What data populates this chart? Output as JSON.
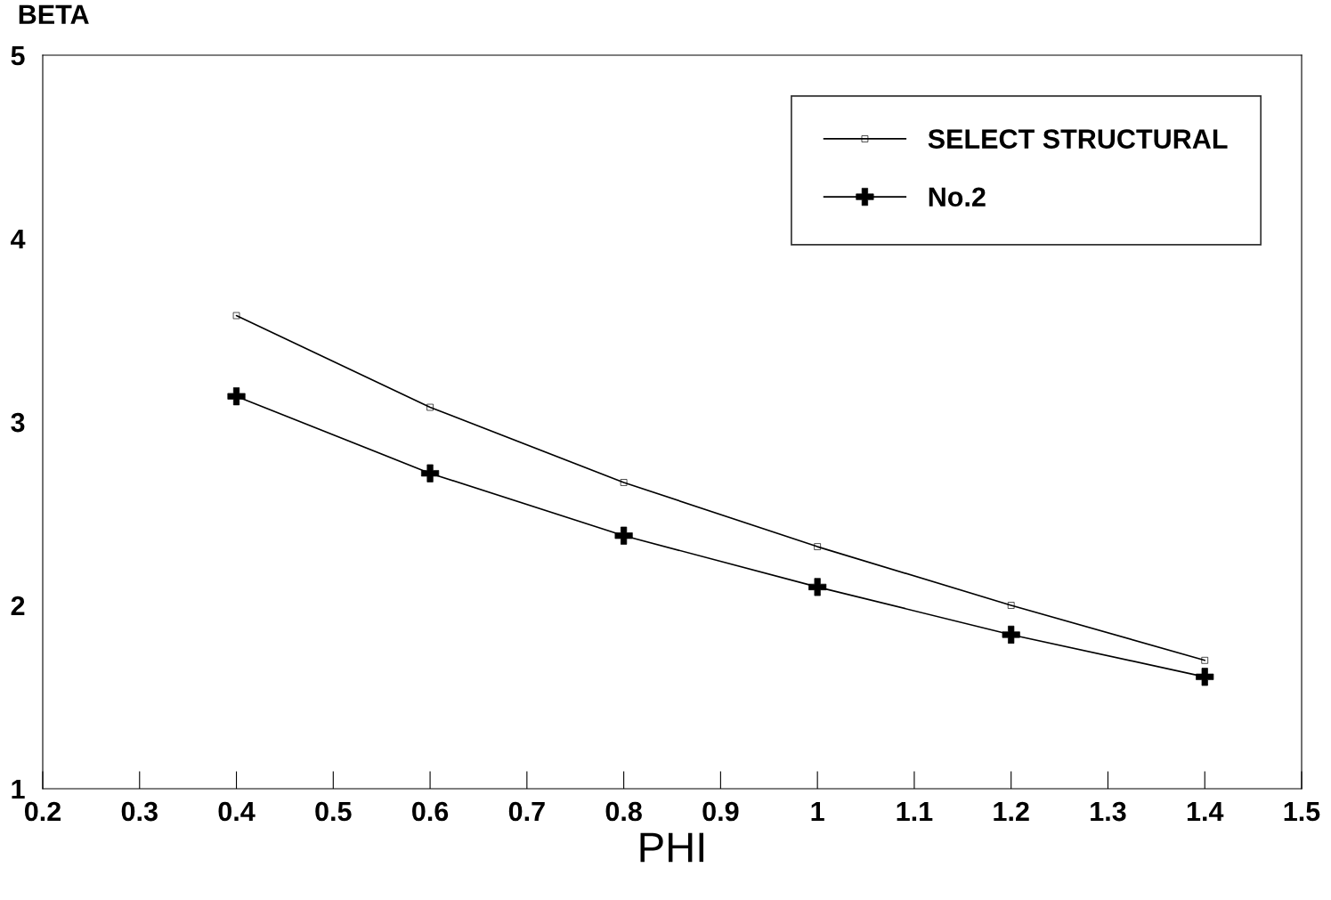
{
  "chart_data": {
    "type": "line",
    "xlabel": "PHI",
    "ylabel": "BETA",
    "x": [
      0.4,
      0.6,
      0.8,
      1.0,
      1.2,
      1.4
    ],
    "series": [
      {
        "name": "SELECT STRUCTURAL",
        "color": "#000000",
        "marker": "square",
        "values": [
          3.58,
          3.08,
          2.67,
          2.32,
          2.0,
          1.7
        ]
      },
      {
        "name": "No.2",
        "color": "#000000",
        "marker": "cross",
        "values": [
          3.14,
          2.72,
          2.38,
          2.1,
          1.84,
          1.61
        ]
      }
    ],
    "xlim": [
      0.2,
      1.5
    ],
    "xticks": [
      0.2,
      0.3,
      0.4,
      0.5,
      0.6,
      0.7,
      0.8,
      0.9,
      1,
      1.1,
      1.2,
      1.3,
      1.4,
      1.5
    ],
    "ylim": [
      1,
      5
    ],
    "yticks": [
      1,
      2,
      3,
      4,
      5
    ],
    "grid": false,
    "legend": "top right",
    "line_style": "solid"
  }
}
